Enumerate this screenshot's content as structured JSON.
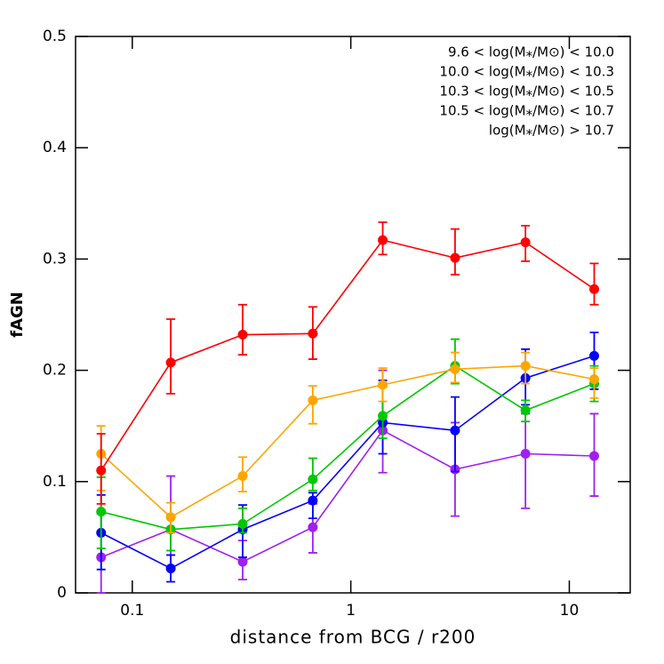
{
  "chart_data": {
    "type": "line",
    "xlabel": "distance from BCG / r200",
    "ylabel": "fAGN",
    "xscale": "log",
    "xlim": [
      0.055,
      19
    ],
    "ylim": [
      0,
      0.5
    ],
    "xticks": [
      0.1,
      1,
      10
    ],
    "yticks": [
      0,
      0.1,
      0.2,
      0.3,
      0.4,
      0.5
    ],
    "legend": "upper right",
    "x": [
      0.072,
      0.15,
      0.32,
      0.67,
      1.4,
      3.0,
      6.3,
      13
    ],
    "series": [
      {
        "name": "9.6 < log(M⁎/M⊙) < 10.0",
        "color": "#a020f0",
        "values": [
          0.032,
          0.057,
          0.028,
          0.059,
          0.146,
          0.111,
          0.125,
          0.123
        ],
        "err_plus": [
          0.039,
          0.048,
          0.019,
          0.021,
          0.054,
          0.042,
          0.036,
          0.038
        ],
        "err_minus": [
          0.032,
          0.035,
          0.016,
          0.023,
          0.038,
          0.042,
          0.049,
          0.036
        ]
      },
      {
        "name": "10.0 < log(M⁎/M⊙) < 10.3",
        "color": "#0000ff",
        "values": [
          0.054,
          0.022,
          0.057,
          0.083,
          0.153,
          0.146,
          0.193,
          0.213
        ],
        "err_plus": [
          0.034,
          0.012,
          0.022,
          0.007,
          0.038,
          0.03,
          0.026,
          0.021
        ],
        "err_minus": [
          0.033,
          0.012,
          0.025,
          0.016,
          0.028,
          0.037,
          0.024,
          0.03
        ]
      },
      {
        "name": "10.3 < log(M⁎/M⊙) < 10.5",
        "color": "#00c800",
        "values": [
          0.073,
          0.057,
          0.062,
          0.102,
          0.159,
          0.204,
          0.164,
          0.188
        ],
        "err_plus": [
          0.031,
          0.013,
          0.014,
          0.019,
          0.026,
          0.024,
          0.009,
          0.016
        ],
        "err_minus": [
          0.033,
          0.019,
          0.008,
          0.01,
          0.02,
          0.016,
          0.01,
          0.016
        ]
      },
      {
        "name": "10.5 < log(M⁎/M⊙) < 10.7",
        "color": "#ffa500",
        "values": [
          0.125,
          0.068,
          0.105,
          0.173,
          0.187,
          0.201,
          0.204,
          0.192
        ],
        "err_plus": [
          0.025,
          0.013,
          0.017,
          0.013,
          0.015,
          0.015,
          0.012,
          0.01
        ],
        "err_minus": [
          0.033,
          0.014,
          0.014,
          0.021,
          0.015,
          0.012,
          0.016,
          0.017
        ]
      },
      {
        "name": "log(M⁎/M⊙) > 10.7",
        "color": "#ff0000",
        "values": [
          0.11,
          0.207,
          0.232,
          0.233,
          0.317,
          0.301,
          0.315,
          0.273
        ],
        "err_plus": [
          0.033,
          0.039,
          0.027,
          0.024,
          0.016,
          0.026,
          0.015,
          0.023
        ],
        "err_minus": [
          0.03,
          0.028,
          0.018,
          0.023,
          0.013,
          0.015,
          0.017,
          0.014
        ]
      }
    ]
  }
}
